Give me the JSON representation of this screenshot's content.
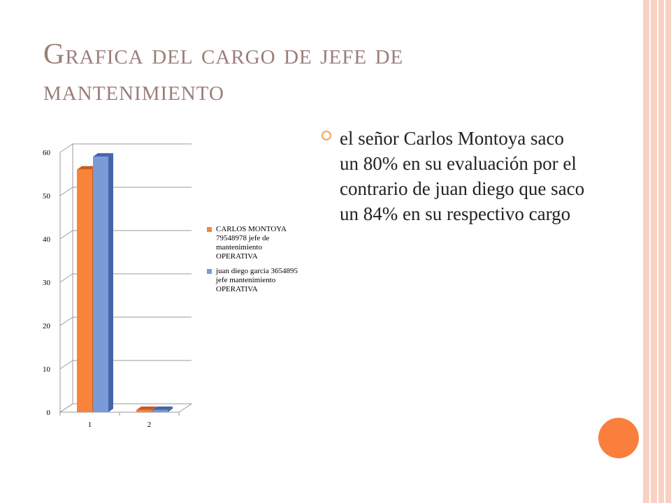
{
  "slide": {
    "title": "Grafica del cargo de  jefe de mantenimiento",
    "bullet": "el señor  Carlos Montoya saco un 80% en su  evaluación   por el contrario de  juan diego que  saco un 84%  en su respectivo cargo"
  },
  "colors": {
    "series1": "#f7843a",
    "series1_dark": "#c95d1e",
    "series2": "#7a9ad8",
    "series2_dark": "#4565aa",
    "accent_circle": "#fa7f3c",
    "bullet_ring": "#f7a354",
    "title": "#9b7e79",
    "border": "#f9d1c2"
  },
  "chart_data": {
    "type": "bar",
    "style": "3d-clustered-column",
    "categories": [
      "1",
      "2"
    ],
    "series": [
      {
        "name": "CARLOS MONTOYA 79548978 jefe de mantenimiento OPERATIVA",
        "values": [
          56,
          0.5
        ]
      },
      {
        "name": "juan diego  garcia 3654895 jefe mantenimiento OPERATIVA",
        "values": [
          59,
          0.5
        ]
      }
    ],
    "yticks": [
      "0",
      "10",
      "20",
      "30",
      "40",
      "50",
      "60"
    ],
    "ylim": [
      0,
      60
    ],
    "grid": true,
    "legend": "right"
  }
}
